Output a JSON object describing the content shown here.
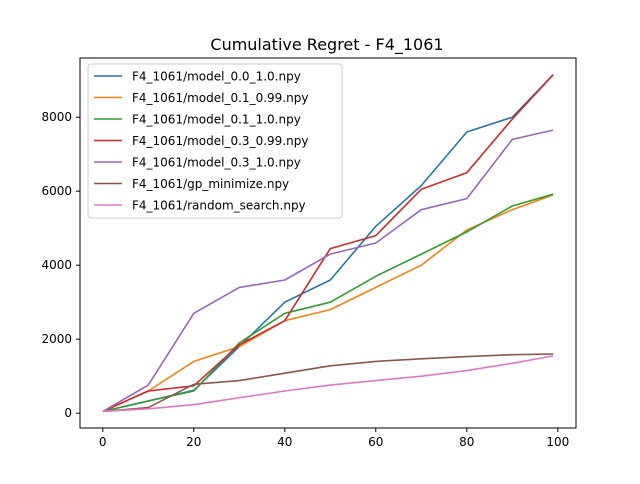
{
  "chart_data": {
    "type": "line",
    "title": "Cumulative Regret - F4_1061",
    "xlabel": "",
    "ylabel": "",
    "xlim": [
      -5,
      104
    ],
    "ylim": [
      -400,
      9600
    ],
    "xticks": [
      0,
      20,
      40,
      60,
      80,
      100
    ],
    "yticks": [
      0,
      2000,
      4000,
      6000,
      8000
    ],
    "x": [
      0,
      10,
      20,
      30,
      40,
      50,
      60,
      70,
      80,
      90,
      99
    ],
    "legend_position": "upper-left",
    "series": [
      {
        "name": "F4_1061/model_0.0_1.0.npy",
        "color": "#1f77b4",
        "values": [
          50,
          330,
          620,
          1800,
          3000,
          3600,
          5050,
          6150,
          7600,
          8000,
          9150
        ]
      },
      {
        "name": "F4_1061/model_0.1_0.99.npy",
        "color": "#ff7f0e",
        "values": [
          50,
          600,
          1400,
          1800,
          2500,
          2800,
          3400,
          4000,
          4950,
          5500,
          5900
        ]
      },
      {
        "name": "F4_1061/model_0.1_1.0.npy",
        "color": "#2ca02c",
        "values": [
          50,
          330,
          600,
          1900,
          2700,
          3000,
          3700,
          4300,
          4900,
          5600,
          5920
        ]
      },
      {
        "name": "F4_1061/model_0.3_0.99.npy",
        "color": "#d62728",
        "values": [
          50,
          600,
          740,
          1850,
          2500,
          4450,
          4800,
          6050,
          6500,
          7950,
          9150
        ]
      },
      {
        "name": "F4_1061/model_0.3_1.0.npy",
        "color": "#9467bd",
        "values": [
          50,
          760,
          2700,
          3400,
          3600,
          4300,
          4600,
          5500,
          5800,
          7400,
          7650
        ]
      },
      {
        "name": "F4_1061/gp_minimize.npy",
        "color": "#8c564b",
        "values": [
          50,
          150,
          780,
          880,
          1080,
          1280,
          1400,
          1470,
          1530,
          1580,
          1600
        ]
      },
      {
        "name": "F4_1061/random_search.npy",
        "color": "#e377c2",
        "values": [
          50,
          120,
          230,
          420,
          600,
          760,
          880,
          1000,
          1150,
          1350,
          1550
        ]
      }
    ]
  }
}
